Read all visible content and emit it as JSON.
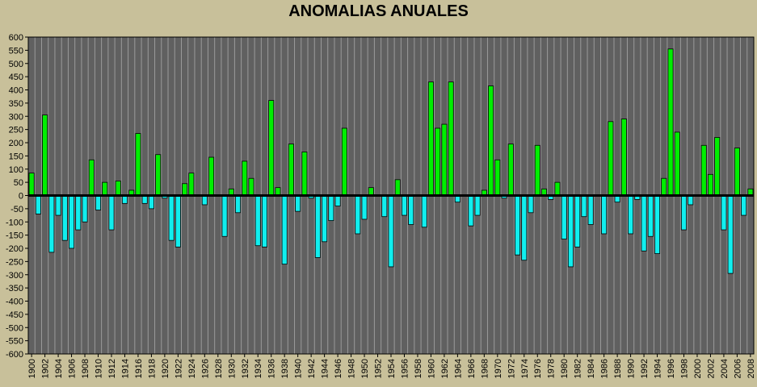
{
  "chart_data": {
    "type": "bar",
    "title": "ANOMALIAS ANUALES",
    "xlabel": "",
    "ylabel": "",
    "ylim": [
      -600,
      600
    ],
    "y_ticks": [
      600,
      550,
      500,
      450,
      400,
      350,
      300,
      250,
      200,
      150,
      100,
      50,
      0,
      -50,
      -100,
      -150,
      -200,
      -250,
      -300,
      -350,
      -400,
      -450,
      -500,
      -550,
      -600
    ],
    "x_tick_labels": [
      "1900",
      "1902",
      "1904",
      "1906",
      "1908",
      "1910",
      "1912",
      "1914",
      "1916",
      "1918",
      "1920",
      "1922",
      "1924",
      "1926",
      "1928",
      "1930",
      "1932",
      "1934",
      "1936",
      "1938",
      "1940",
      "1942",
      "1944",
      "1946",
      "1948",
      "1950",
      "1952",
      "1954",
      "1956",
      "1958",
      "1960",
      "1962",
      "1964",
      "1966",
      "1968",
      "1970",
      "1972",
      "1974",
      "1976",
      "1978",
      "1980",
      "1982",
      "1984",
      "1986",
      "1988",
      "1990",
      "1992",
      "1994",
      "1996",
      "1998",
      "2000",
      "2002",
      "2004",
      "2006",
      "2008"
    ],
    "categories": [
      "1900",
      "1901",
      "1902",
      "1903",
      "1904",
      "1905",
      "1906",
      "1907",
      "1908",
      "1909",
      "1910",
      "1911",
      "1912",
      "1913",
      "1914",
      "1915",
      "1916",
      "1917",
      "1918",
      "1919",
      "1920",
      "1921",
      "1922",
      "1923",
      "1924",
      "1925",
      "1926",
      "1927",
      "1928",
      "1929",
      "1930",
      "1931",
      "1932",
      "1933",
      "1934",
      "1935",
      "1936",
      "1937",
      "1938",
      "1939",
      "1940",
      "1941",
      "1942",
      "1943",
      "1944",
      "1945",
      "1946",
      "1947",
      "1948",
      "1949",
      "1950",
      "1951",
      "1952",
      "1953",
      "1954",
      "1955",
      "1956",
      "1957",
      "1958",
      "1959",
      "1960",
      "1961",
      "1962",
      "1963",
      "1964",
      "1965",
      "1966",
      "1967",
      "1968",
      "1969",
      "1970",
      "1971",
      "1972",
      "1973",
      "1974",
      "1975",
      "1976",
      "1977",
      "1978",
      "1979",
      "1980",
      "1981",
      "1982",
      "1983",
      "1984",
      "1985",
      "1986",
      "1987",
      "1988",
      "1989",
      "1990",
      "1991",
      "1992",
      "1993",
      "1994",
      "1995",
      "1996",
      "1997",
      "1998",
      "1999",
      "2000",
      "2001",
      "2002",
      "2003",
      "2004",
      "2005",
      "2006",
      "2007",
      "2008"
    ],
    "values": [
      85,
      -70,
      305,
      -215,
      -75,
      -170,
      -200,
      -130,
      -100,
      135,
      -55,
      50,
      -130,
      55,
      -30,
      20,
      235,
      -30,
      -50,
      155,
      -10,
      -170,
      -195,
      45,
      85,
      0,
      -35,
      145,
      0,
      -155,
      25,
      -65,
      130,
      65,
      -190,
      -195,
      360,
      30,
      -260,
      195,
      -60,
      165,
      -10,
      -235,
      -175,
      -95,
      -40,
      255,
      0,
      -145,
      -90,
      30,
      0,
      -80,
      -270,
      60,
      -75,
      -110,
      0,
      -120,
      430,
      255,
      270,
      430,
      -25,
      0,
      -115,
      -75,
      20,
      415,
      135,
      -10,
      195,
      -225,
      -245,
      -65,
      190,
      25,
      -15,
      50,
      -165,
      -270,
      -195,
      -80,
      -110,
      0,
      -145,
      280,
      -25,
      290,
      -145,
      -15,
      -210,
      -155,
      -220,
      65,
      555,
      240,
      -130,
      -35,
      0,
      190,
      80,
      220,
      -130,
      -295,
      180,
      -75,
      25
    ],
    "colors": {
      "positive": "#00ee00",
      "negative": "#11eeee",
      "plot_bg": "#606060",
      "grid": "#9a9a9a",
      "page_bg": "#c8c09a"
    },
    "grid": true,
    "legend": "none"
  }
}
